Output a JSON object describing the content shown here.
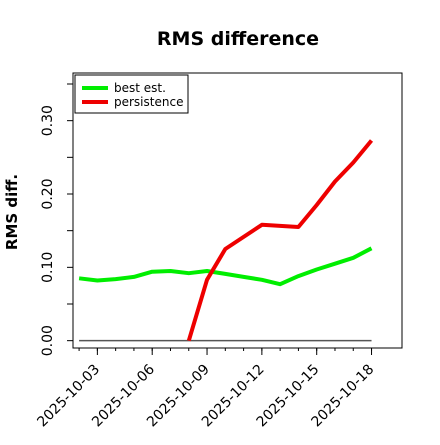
{
  "chart_data": {
    "type": "line",
    "title": "RMS difference",
    "xlabel": "",
    "ylabel": "RMS diff.",
    "x": [
      "2025-10-02",
      "2025-10-03",
      "2025-10-04",
      "2025-10-05",
      "2025-10-06",
      "2025-10-07",
      "2025-10-08",
      "2025-10-09",
      "2025-10-10",
      "2025-10-11",
      "2025-10-12",
      "2025-10-13",
      "2025-10-14",
      "2025-10-15",
      "2025-10-16",
      "2025-10-17",
      "2025-10-18"
    ],
    "x_ticks": [
      "2025-10-03",
      "2025-10-06",
      "2025-10-09",
      "2025-10-12",
      "2025-10-15",
      "2025-10-18"
    ],
    "xlim": [
      "2025-10-01T16:00",
      "2025-10-19T16:00"
    ],
    "y_ticks": [
      "0.00",
      "0.10",
      "0.20",
      "0.30"
    ],
    "ylim": [
      -0.01,
      0.365
    ],
    "grid": false,
    "legend_position": "top-left",
    "series": [
      {
        "name": "best est.",
        "color": "#00ee00",
        "values": [
          0.085,
          0.082,
          0.084,
          0.087,
          0.094,
          0.095,
          0.092,
          0.095,
          0.091,
          0.087,
          0.083,
          0.077,
          0.088,
          0.097,
          0.105,
          0.113,
          0.126
        ]
      },
      {
        "name": "persistence",
        "color": "#ee0000",
        "values": [
          null,
          null,
          null,
          null,
          null,
          null,
          0.0,
          0.083,
          0.125,
          null,
          0.158,
          null,
          0.155,
          0.185,
          0.217,
          0.243,
          0.273
        ]
      }
    ],
    "reference_line": {
      "value": 0.0,
      "color": "#555555"
    }
  }
}
